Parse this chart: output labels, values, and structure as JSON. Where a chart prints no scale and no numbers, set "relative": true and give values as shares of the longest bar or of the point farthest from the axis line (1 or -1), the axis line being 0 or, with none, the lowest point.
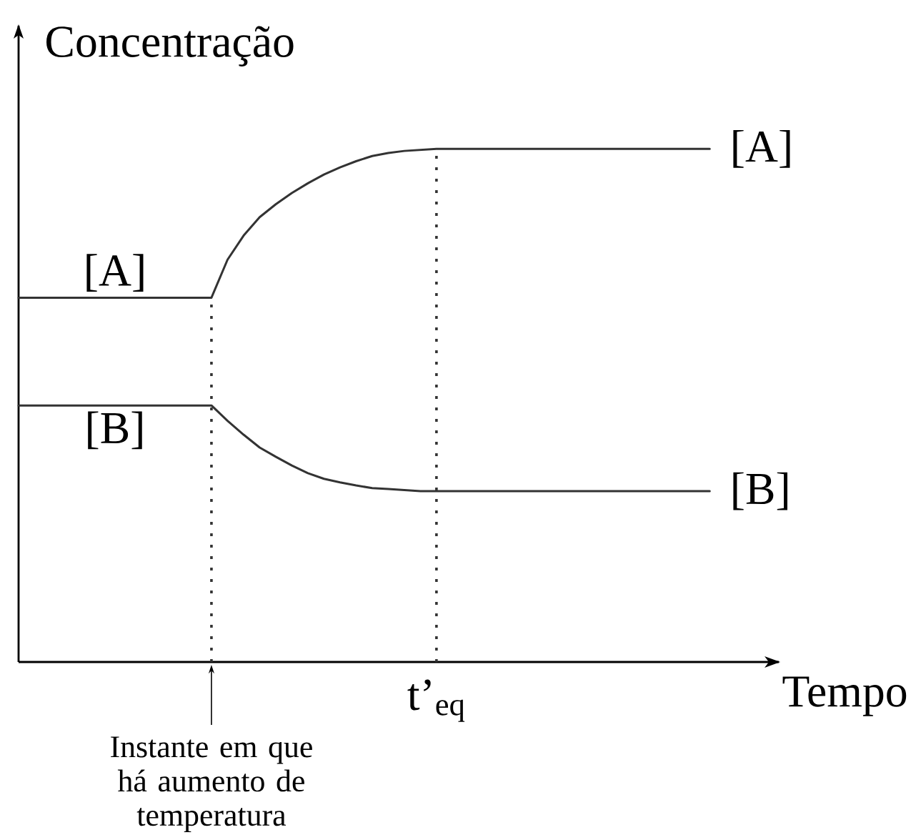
{
  "chart_data": {
    "type": "line",
    "relative": true,
    "ylabel": "Concentração",
    "xlabel": "Tempo",
    "categories": [
      null,
      null,
      null,
      null,
      null,
      null,
      null,
      null,
      null,
      null,
      null,
      null,
      null,
      null,
      null,
      null,
      null,
      null,
      null,
      null,
      null,
      null,
      null,
      null,
      null,
      null,
      null,
      null,
      null,
      null,
      null,
      null,
      null,
      null,
      null,
      null,
      null,
      null,
      null,
      null,
      null,
      null,
      null,
      null
    ],
    "series": [
      {
        "name": "[A]",
        "color": "#333333",
        "values": [
          0.71,
          0.71,
          0.71,
          0.71,
          0.71,
          0.71,
          0.71,
          0.71,
          0.71,
          0.71,
          0.71,
          0.71,
          0.71,
          0.784,
          0.831,
          0.867,
          0.892,
          0.914,
          0.933,
          0.95,
          0.964,
          0.976,
          0.986,
          0.992,
          0.996,
          0.998,
          1,
          1,
          1,
          1,
          1,
          1,
          1,
          1,
          1,
          1,
          1,
          1,
          1,
          1,
          1,
          1,
          1,
          1
        ]
      },
      {
        "name": "[B]",
        "color": "#333333",
        "values": [
          0.5,
          0.5,
          0.5,
          0.5,
          0.5,
          0.5,
          0.5,
          0.5,
          0.5,
          0.5,
          0.5,
          0.5,
          0.5,
          0.47,
          0.443,
          0.418,
          0.4,
          0.383,
          0.368,
          0.357,
          0.35,
          0.344,
          0.339,
          0.337,
          0.335,
          0.333,
          0.333,
          0.333,
          0.333,
          0.333,
          0.333,
          0.333,
          0.333,
          0.333,
          0.333,
          0.333,
          0.333,
          0.333,
          0.333,
          0.333,
          0.333,
          0.333,
          0.333,
          0.333
        ]
      }
    ],
    "annotations": [
      "Instante em que há aumento de temperatura",
      "t’$_{eq}$"
    ]
  }
}
